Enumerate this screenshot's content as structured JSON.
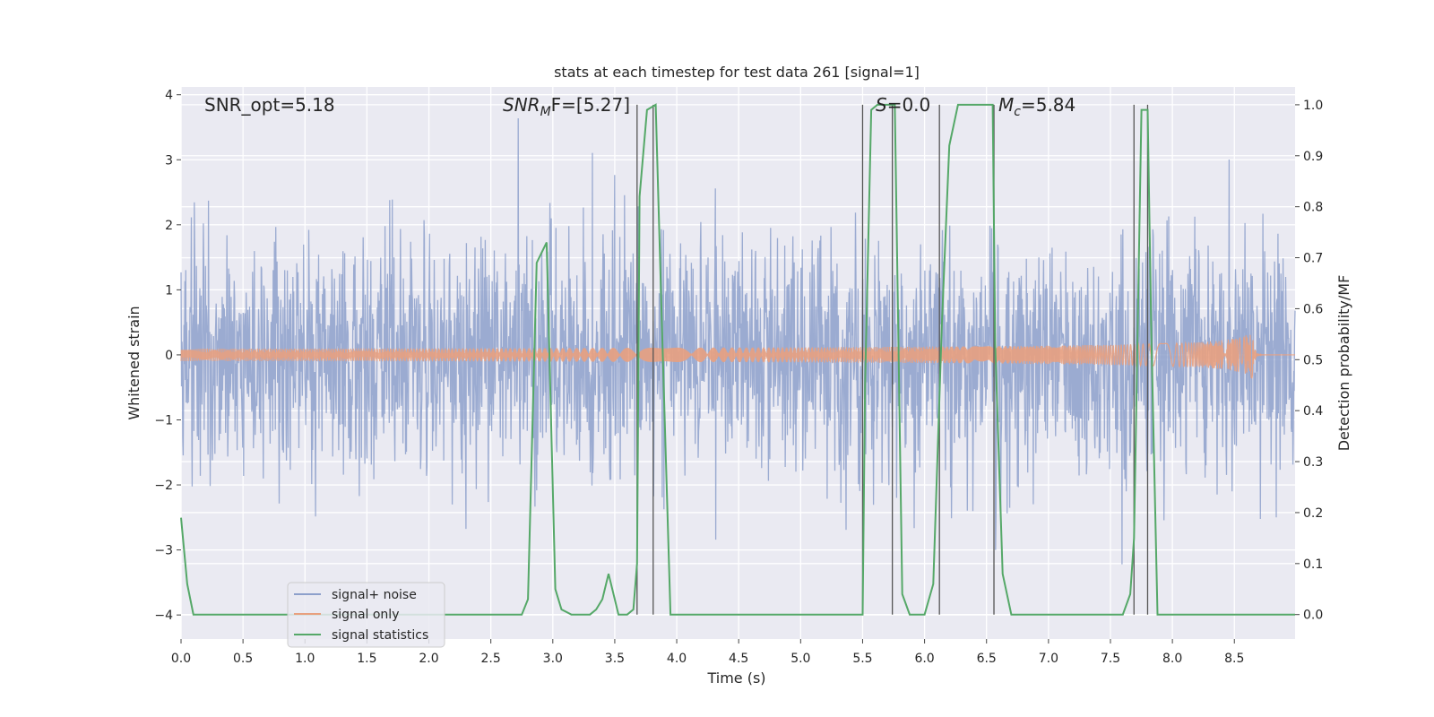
{
  "chart_data": {
    "type": "line",
    "title": "stats at each timestep for test data 261 [signal=1]",
    "xlabel": "Time (s)",
    "ylabel_left": "Whitened strain",
    "ylabel_right": "Detection probability/MF",
    "xlim": [
      0.0,
      8.99
    ],
    "ylim_left": [
      -4.37,
      4.12
    ],
    "ylim_right": [
      -0.048,
      1.035
    ],
    "x_ticks": [
      "0.0",
      "0.5",
      "1.0",
      "1.5",
      "2.0",
      "2.5",
      "3.0",
      "3.5",
      "4.0",
      "4.5",
      "5.0",
      "5.5",
      "6.0",
      "6.5",
      "7.0",
      "7.5",
      "8.0",
      "8.5"
    ],
    "y_ticks_left": [
      "−4",
      "−3",
      "−2",
      "−1",
      "0",
      "1",
      "2",
      "3",
      "4"
    ],
    "y_ticks_right": [
      "0.0",
      "0.1",
      "0.2",
      "0.3",
      "0.4",
      "0.5",
      "0.6",
      "0.7",
      "0.8",
      "0.9",
      "1.0"
    ],
    "grid": true,
    "legend_position": "lower-left",
    "annotations": {
      "snr_opt": "SNR_opt=5.18",
      "snr_mf_main": "SNR",
      "snr_mf_sub": "M",
      "snr_mf_rest": "F=[5.27]",
      "s_main": "S",
      "s_rest": "=0.0",
      "mc_main": "M",
      "mc_sub": "c",
      "mc_rest": "=5.84"
    },
    "series": [
      {
        "name": "signal+ noise",
        "color": "#8da0cb",
        "kind": "noise",
        "amplitude_std": 0.9
      },
      {
        "name": "signal only",
        "color": "#e8a07f",
        "kind": "chirp",
        "peak_time": 8.65,
        "peak_amplitude": 0.65
      },
      {
        "name": "signal statistics",
        "color": "#55a868",
        "x": [
          0.0,
          0.05,
          0.1,
          0.15,
          0.2,
          0.5,
          1.0,
          1.5,
          2.0,
          2.5,
          2.75,
          2.8,
          2.87,
          2.95,
          3.02,
          3.07,
          3.15,
          3.3,
          3.35,
          3.4,
          3.45,
          3.53,
          3.6,
          3.65,
          3.68,
          3.7,
          3.76,
          3.83,
          3.88,
          3.95,
          4.5,
          5.0,
          5.5,
          5.52,
          5.57,
          5.62,
          5.7,
          5.76,
          5.82,
          5.88,
          6.0,
          6.07,
          6.14,
          6.2,
          6.27,
          6.4,
          6.55,
          6.57,
          6.63,
          6.7,
          7.0,
          7.5,
          7.6,
          7.66,
          7.69,
          7.75,
          7.8,
          7.83,
          7.88,
          8.0,
          8.5,
          8.99
        ],
        "y": [
          0.19,
          0.06,
          0.0,
          0.0,
          0.0,
          0.0,
          0.0,
          0.0,
          0.0,
          0.0,
          0.0,
          0.03,
          0.69,
          0.73,
          0.05,
          0.01,
          0.0,
          0.0,
          0.01,
          0.03,
          0.08,
          0.0,
          0.0,
          0.01,
          0.1,
          0.82,
          0.99,
          1.0,
          0.57,
          0.0,
          0.0,
          0.0,
          0.0,
          0.45,
          0.99,
          1.0,
          1.0,
          1.0,
          0.04,
          0.0,
          0.0,
          0.06,
          0.57,
          0.92,
          1.0,
          1.0,
          1.0,
          0.53,
          0.08,
          0.0,
          0.0,
          0.0,
          0.0,
          0.04,
          0.15,
          0.99,
          0.99,
          0.55,
          0.0,
          0.0,
          0.0,
          0.0
        ]
      }
    ],
    "vertical_lines_x": [
      3.68,
      3.81,
      5.5,
      5.74,
      6.12,
      6.56,
      7.69,
      7.8
    ]
  }
}
